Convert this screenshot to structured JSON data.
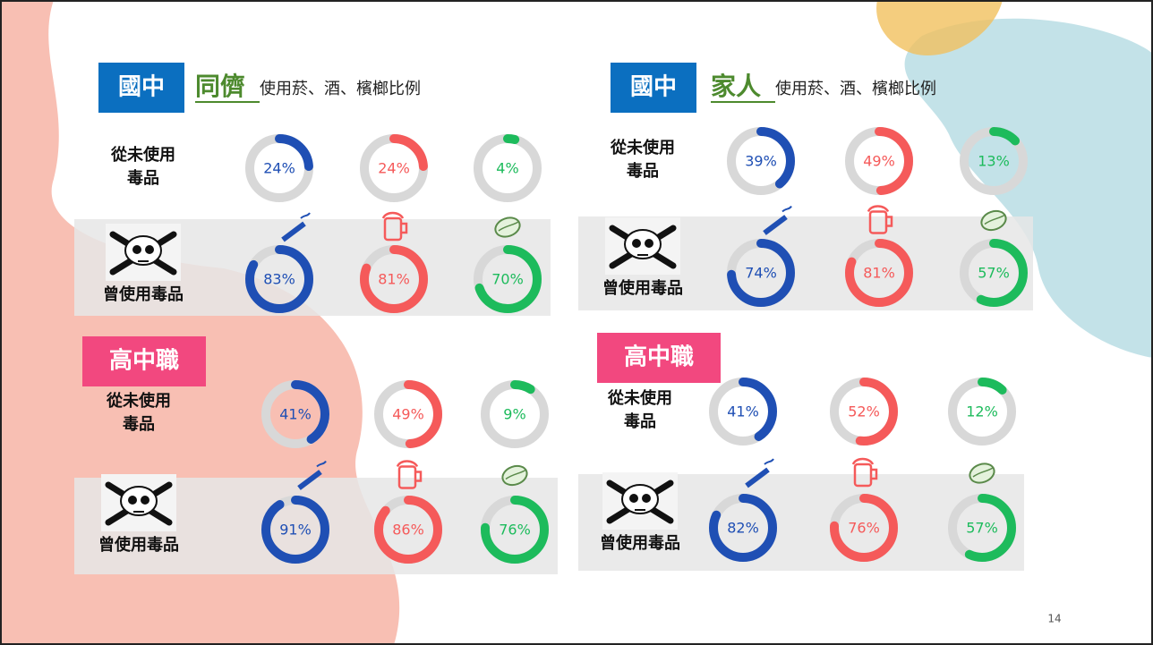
{
  "page_number": "14",
  "colors": [
    "#1f4fb4",
    "#f55a5a",
    "#1dbb5c"
  ],
  "panels": [
    {
      "school": "國中",
      "group": "同儕",
      "subtitle": "使用菸、酒、檳榔比例",
      "rows": [
        {
          "label": [
            "從未使用",
            "毒品"
          ],
          "values": [
            24,
            24,
            4
          ],
          "value_labels": [
            "24%",
            "24%",
            "4%"
          ]
        },
        {
          "label": [
            "曾使用毒品"
          ],
          "values": [
            83,
            81,
            70
          ],
          "value_labels": [
            "83%",
            "81%",
            "70%"
          ]
        }
      ]
    },
    {
      "school": "國中",
      "group": "家人",
      "subtitle": "使用菸、酒、檳榔比例",
      "rows": [
        {
          "label": [
            "從未使用",
            "毒品"
          ],
          "values": [
            39,
            49,
            13
          ],
          "value_labels": [
            "39%",
            "49%",
            "13%"
          ]
        },
        {
          "label": [
            "曾使用毒品"
          ],
          "values": [
            74,
            81,
            57
          ],
          "value_labels": [
            "74%",
            "81%",
            "57%"
          ]
        }
      ]
    },
    {
      "school": "高中職",
      "rows": [
        {
          "label": [
            "從未使用",
            "毒品"
          ],
          "values": [
            41,
            49,
            9
          ],
          "value_labels": [
            "41%",
            "49%",
            "9%"
          ]
        },
        {
          "label": [
            "曾使用毒品"
          ],
          "values": [
            91,
            86,
            76
          ],
          "value_labels": [
            "91%",
            "86%",
            "76%"
          ]
        }
      ]
    },
    {
      "school": "高中職",
      "rows": [
        {
          "label": [
            "從未使用",
            "毒品"
          ],
          "values": [
            41,
            52,
            12
          ],
          "value_labels": [
            "41%",
            "52%",
            "12%"
          ]
        },
        {
          "label": [
            "曾使用毒品"
          ],
          "values": [
            82,
            76,
            57
          ],
          "value_labels": [
            "82%",
            "76%",
            "57%"
          ]
        }
      ]
    }
  ]
}
